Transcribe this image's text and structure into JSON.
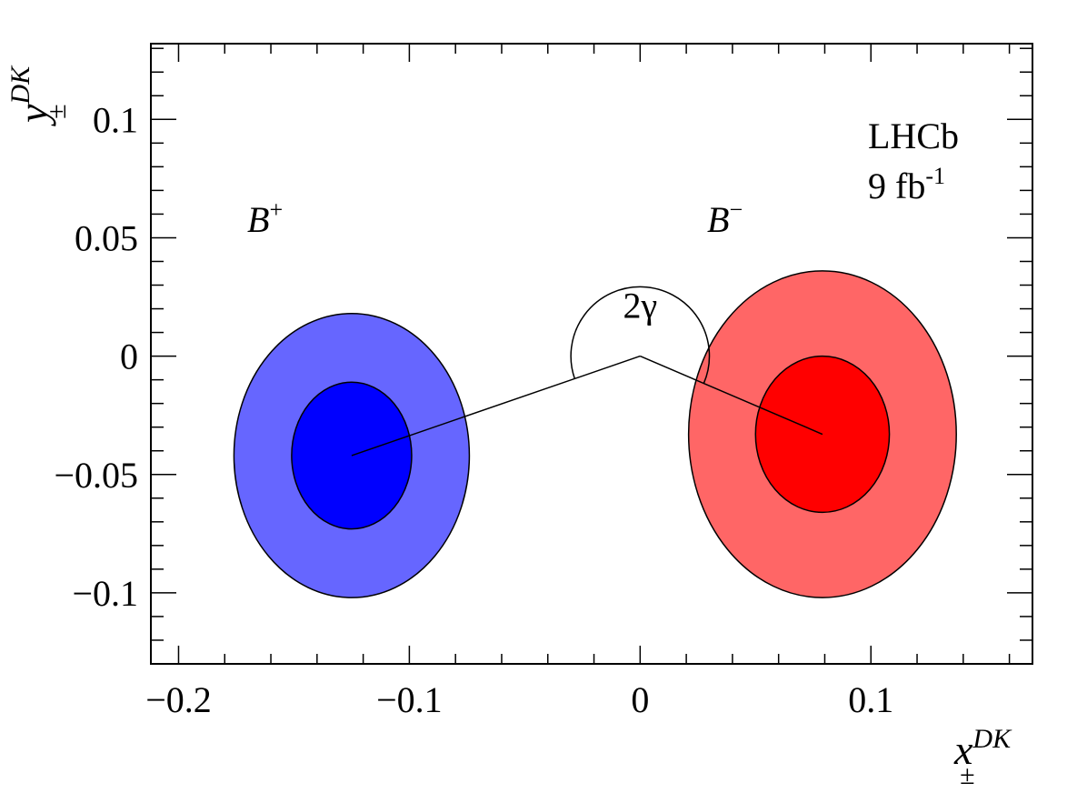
{
  "chart_data": {
    "type": "contour",
    "xlabel": {
      "base": "x",
      "sub": "±",
      "sup": "DK"
    },
    "ylabel": {
      "base": "y",
      "sub": "±",
      "sup": "DK"
    },
    "xlim": [
      -0.212,
      0.17
    ],
    "ylim": [
      -0.13,
      0.132
    ],
    "x_ticks": [
      {
        "value": -0.2,
        "label": "−0.2"
      },
      {
        "value": -0.1,
        "label": "−0.1"
      },
      {
        "value": 0,
        "label": "0"
      },
      {
        "value": 0.1,
        "label": "0.1"
      }
    ],
    "y_ticks": [
      {
        "value": 0.1,
        "label": "0.1"
      },
      {
        "value": 0.05,
        "label": "0.05"
      },
      {
        "value": 0,
        "label": "0"
      },
      {
        "value": -0.05,
        "label": "−0.05"
      },
      {
        "value": -0.1,
        "label": "−0.1"
      }
    ],
    "x_minor_step": 0.02,
    "y_minor_step": 0.01,
    "grid": false,
    "series": [
      {
        "name": "B+",
        "center": [
          -0.125,
          -0.042
        ],
        "contours": [
          {
            "level": "outer",
            "rx": 0.051,
            "ry": 0.06,
            "color": "#6666ff"
          },
          {
            "level": "inner",
            "rx": 0.026,
            "ry": 0.031,
            "color": "#0000ff"
          }
        ]
      },
      {
        "name": "B−",
        "center": [
          0.079,
          -0.033
        ],
        "contours": [
          {
            "level": "outer",
            "rx": 0.058,
            "ry": 0.069,
            "color": "#ff6666"
          },
          {
            "level": "inner",
            "rx": 0.029,
            "ry": 0.033,
            "color": "#ff0000"
          }
        ]
      }
    ],
    "angle_arc": {
      "center": [
        0,
        0
      ],
      "radius": 0.03,
      "label": "2γ"
    },
    "annotations": {
      "experiment": "LHCb",
      "lumi_value": "9 fb",
      "lumi_exp": "-1",
      "bplus": {
        "base": "B",
        "sup": "+"
      },
      "bminus": {
        "base": "B",
        "sup": "−"
      }
    }
  }
}
